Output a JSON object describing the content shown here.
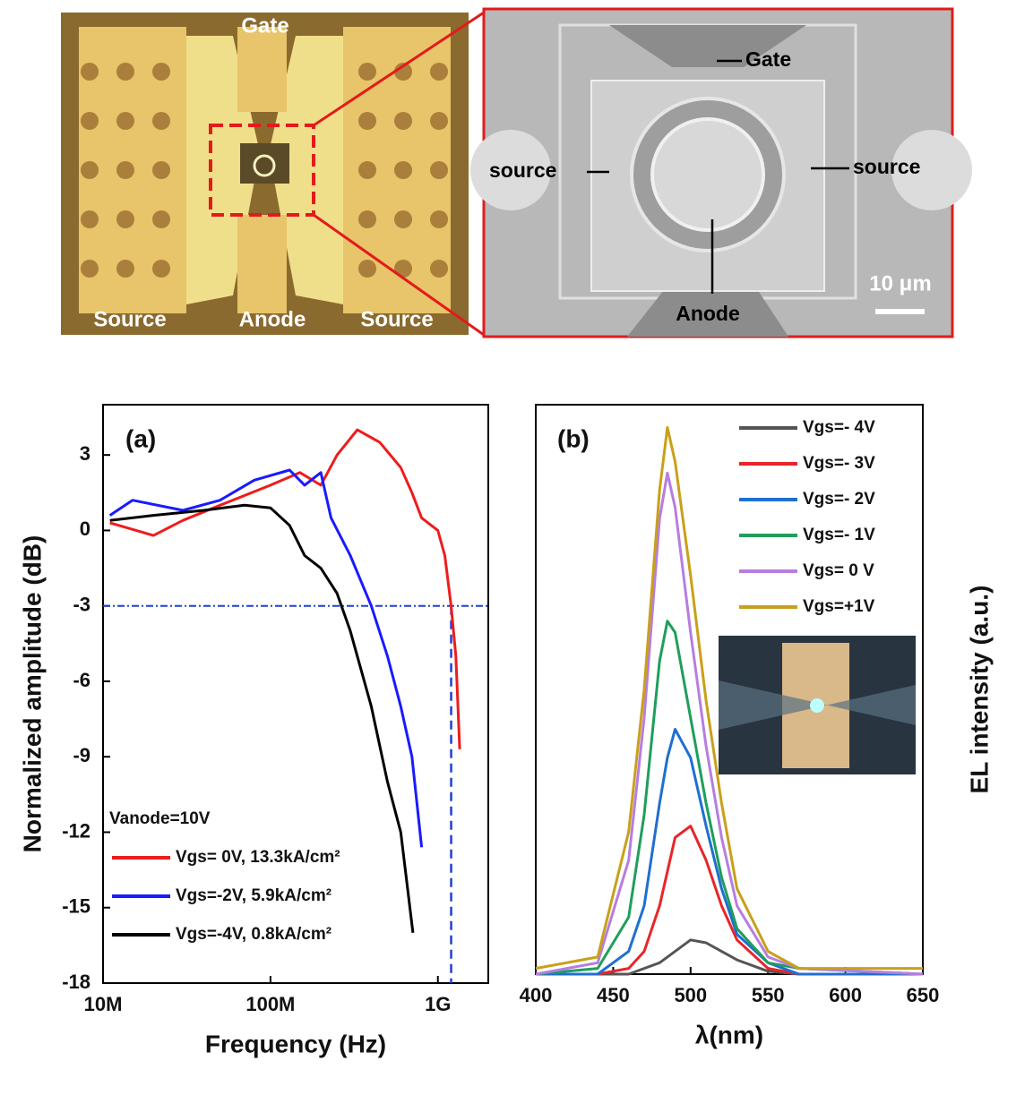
{
  "micrographs": {
    "optical": {
      "labels": [
        "Gate",
        "Source",
        "Anode",
        "Source"
      ]
    },
    "sem": {
      "labels": [
        "Gate",
        "source",
        "source",
        "Anode"
      ],
      "scale_bar": "10 μm"
    }
  },
  "chart_data": [
    {
      "type": "line",
      "annotation": "(a)",
      "note": "Vanode=10V",
      "xlabel": "Frequency (Hz)",
      "ylabel": "Normalized amplitude (dB)",
      "xscale": "log",
      "xlim": [
        10000000,
        2000000000
      ],
      "xticks": [
        {
          "value": 10000000,
          "label": "10M"
        },
        {
          "value": 100000000,
          "label": "100M"
        },
        {
          "value": 1000000000,
          "label": "1G"
        }
      ],
      "ylim": [
        -18,
        5
      ],
      "yticks": [
        -18,
        -15,
        -12,
        -9,
        -6,
        -3,
        0,
        3
      ],
      "hline": -3,
      "vline": 1200000000,
      "reference_color": "#1f3fd6",
      "series": [
        {
          "name": "Vgs= 0V, 13.3kA/cm²",
          "color": "#ee1c1c",
          "x": [
            11000000,
            20000000,
            30000000,
            50000000,
            100000000,
            150000000,
            200000000,
            250000000,
            330000000,
            450000000,
            600000000,
            700000000,
            800000000,
            1000000000,
            1100000000,
            1200000000,
            1280000000,
            1350000000
          ],
          "values": [
            0.3,
            -0.2,
            0.4,
            1,
            1.8,
            2.3,
            1.8,
            3,
            4,
            3.5,
            2.5,
            1.5,
            0.5,
            0,
            -1,
            -3,
            -5,
            -8.7
          ]
        },
        {
          "name": "Vgs=-2V, 5.9kA/cm²",
          "color": "#1a1aff",
          "x": [
            11000000,
            15000000,
            30000000,
            50000000,
            80000000,
            130000000,
            160000000,
            200000000,
            230000000,
            300000000,
            400000000,
            500000000,
            600000000,
            700000000,
            800000000
          ],
          "values": [
            0.6,
            1.2,
            0.8,
            1.2,
            2,
            2.4,
            1.8,
            2.3,
            0.5,
            -1,
            -3,
            -5,
            -7,
            -9,
            -12.6
          ]
        },
        {
          "name": "Vgs=-4V, 0.8kA/cm²",
          "color": "#000000",
          "x": [
            11000000,
            20000000,
            40000000,
            70000000,
            100000000,
            130000000,
            160000000,
            200000000,
            250000000,
            300000000,
            400000000,
            500000000,
            600000000,
            710000000
          ],
          "values": [
            0.4,
            0.6,
            0.8,
            1,
            0.9,
            0.2,
            -1,
            -1.5,
            -2.5,
            -4,
            -7,
            -10,
            -12,
            -16
          ]
        }
      ]
    },
    {
      "type": "line",
      "annotation": "(b)",
      "xlabel": "λ(nm)",
      "ylabel": "EL intensity (a.u.)",
      "xlim": [
        400,
        650
      ],
      "xticks": [
        400,
        450,
        500,
        550,
        600,
        650
      ],
      "ylim": [
        0,
        1
      ],
      "x": [
        400,
        440,
        460,
        470,
        480,
        485,
        490,
        500,
        510,
        520,
        530,
        550,
        570,
        650
      ],
      "series": [
        {
          "name": "Vgs=- 4V",
          "color": "#555555",
          "values": [
            0,
            0,
            0,
            0.01,
            0.02,
            0.03,
            0.04,
            0.06,
            0.055,
            0.04,
            0.025,
            0.005,
            0,
            0
          ]
        },
        {
          "name": "Vgs=- 3V",
          "color": "#e8252a",
          "values": [
            0,
            0,
            0.01,
            0.04,
            0.12,
            0.18,
            0.24,
            0.26,
            0.2,
            0.12,
            0.06,
            0.01,
            0,
            0
          ]
        },
        {
          "name": "Vgs=- 2V",
          "color": "#1f6fd1",
          "values": [
            0,
            0,
            0.04,
            0.12,
            0.3,
            0.38,
            0.43,
            0.38,
            0.26,
            0.15,
            0.07,
            0.02,
            0,
            0
          ]
        },
        {
          "name": "Vgs=- 1V",
          "color": "#1f9e5c",
          "values": [
            0,
            0.01,
            0.1,
            0.28,
            0.55,
            0.62,
            0.6,
            0.45,
            0.3,
            0.17,
            0.08,
            0.02,
            0.01,
            0
          ]
        },
        {
          "name": "Vgs= 0 V",
          "color": "#b67ee0",
          "values": [
            0,
            0.02,
            0.2,
            0.45,
            0.8,
            0.88,
            0.82,
            0.6,
            0.4,
            0.24,
            0.12,
            0.03,
            0.01,
            0
          ]
        },
        {
          "name": "Vgs=+1V",
          "color": "#c9a01a",
          "values": [
            0.01,
            0.03,
            0.25,
            0.5,
            0.85,
            0.96,
            0.9,
            0.7,
            0.48,
            0.3,
            0.15,
            0.04,
            0.01,
            0.01
          ]
        }
      ]
    }
  ]
}
